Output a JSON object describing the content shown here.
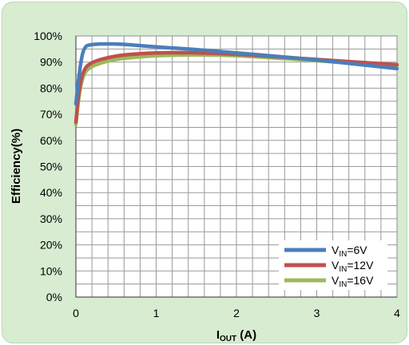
{
  "chart_data": {
    "type": "line",
    "xlabel": {
      "main": "I",
      "sub": "OUT",
      "suffix": " (A)"
    },
    "ylabel": "Efficiency(%)",
    "xlim": [
      0,
      4
    ],
    "ylim": [
      0,
      100
    ],
    "xticks": [
      "0",
      "1",
      "2",
      "3",
      "4"
    ],
    "yticks": [
      "0%",
      "10%",
      "20%",
      "30%",
      "40%",
      "50%",
      "60%",
      "70%",
      "80%",
      "90%",
      "100%"
    ],
    "grid": true,
    "legend_position": "bottom-right",
    "series": [
      {
        "legend": {
          "main": "V",
          "sub": "IN",
          "suffix": "=6V"
        },
        "color": "#4a7ebb",
        "points": [
          [
            0,
            74
          ],
          [
            0.05,
            88
          ],
          [
            0.1,
            96
          ],
          [
            0.2,
            96.8
          ],
          [
            0.4,
            97
          ],
          [
            0.6,
            96.8
          ],
          [
            1.0,
            95.8
          ],
          [
            1.5,
            94.8
          ],
          [
            2.0,
            93.5
          ],
          [
            2.5,
            92.2
          ],
          [
            3.0,
            90.8
          ],
          [
            3.5,
            89.2
          ],
          [
            4.0,
            87.5
          ]
        ]
      },
      {
        "legend": {
          "main": "V",
          "sub": "IN",
          "suffix": "=12V"
        },
        "color": "#c0504d",
        "points": [
          [
            0,
            67
          ],
          [
            0.04,
            80
          ],
          [
            0.1,
            87.5
          ],
          [
            0.2,
            90
          ],
          [
            0.4,
            91.8
          ],
          [
            0.6,
            92.8
          ],
          [
            1.0,
            93.6
          ],
          [
            1.5,
            93.6
          ],
          [
            2.0,
            93
          ],
          [
            2.5,
            92
          ],
          [
            3.0,
            91
          ],
          [
            3.5,
            90
          ],
          [
            4.0,
            89
          ]
        ]
      },
      {
        "legend": {
          "main": "V",
          "sub": "IN",
          "suffix": "=16V"
        },
        "color": "#9bbb59",
        "points": [
          [
            0,
            66
          ],
          [
            0.04,
            78
          ],
          [
            0.1,
            86
          ],
          [
            0.2,
            88.5
          ],
          [
            0.4,
            90.5
          ],
          [
            0.6,
            91.5
          ],
          [
            1.0,
            92.5
          ],
          [
            1.5,
            92.8
          ],
          [
            2.0,
            92.5
          ],
          [
            2.5,
            91.5
          ],
          [
            3.0,
            90.5
          ],
          [
            3.5,
            89.5
          ],
          [
            4.0,
            88.5
          ]
        ]
      }
    ]
  }
}
